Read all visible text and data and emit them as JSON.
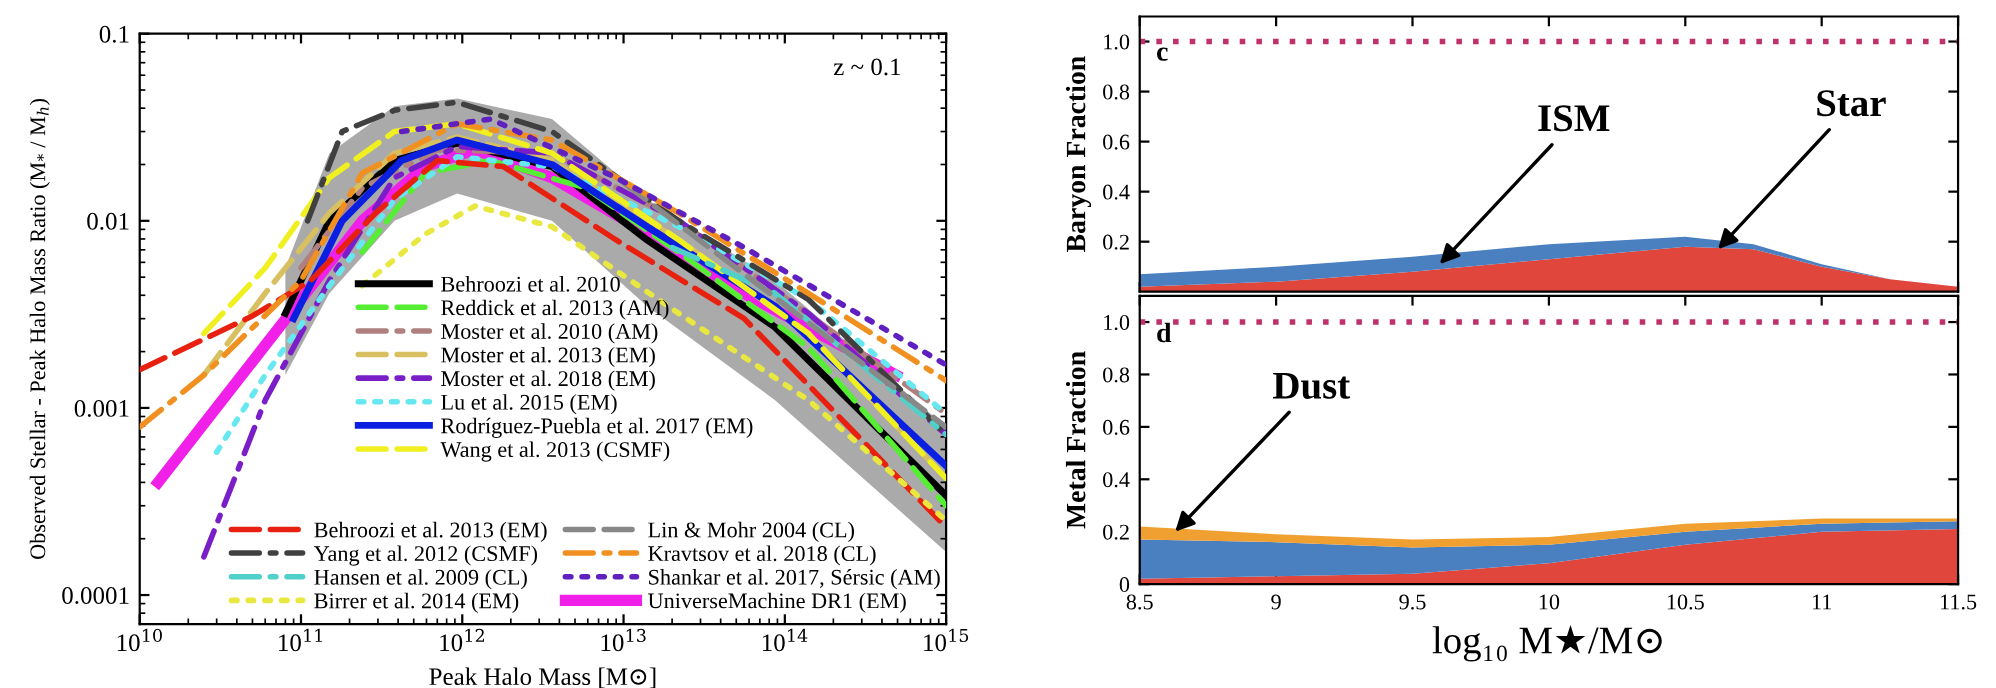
{
  "chart_data": [
    {
      "type": "line",
      "xlabel": "Peak Halo Mass [M⊙]",
      "ylabel": "Observed Stellar - Peak Halo Mass Ratio (M$_{*}$ / M$_{h}$)",
      "annotations": [
        "z ~ 0.1"
      ],
      "log": "xy",
      "legend": "bottom",
      "xlim": [
        10000000000.0,
        1000000000000000.0
      ],
      "ylim": [
        7e-05,
        0.1
      ],
      "xticks": [
        {
          "value": 10000000000.0,
          "label": "10$^{10}$"
        },
        {
          "value": 100000000000.0,
          "label": "10$^{11}$"
        },
        {
          "value": 1000000000000.0,
          "label": "10$^{12}$"
        },
        {
          "value": 10000000000000.0,
          "label": "10$^{13}$"
        },
        {
          "value": 100000000000000.0,
          "label": "10$^{14}$"
        },
        {
          "value": 1000000000000000.0,
          "label": "10$^{15}$"
        }
      ],
      "yticks": [
        0.0001,
        0.001,
        0.01,
        0.1
      ],
      "series": [
        {
          "name": "Behroozi et al. 2010",
          "color": "#000000",
          "line_style": "solid",
          "x": [
            80000000000.0,
            150000000000.0,
            380000000000.0,
            930000000000.0,
            3600000000000.0,
            14000000000000.0,
            87000000000000.0,
            1000000000000000.0
          ],
          "values": [
            0.0032,
            0.01,
            0.021,
            0.026,
            0.0195,
            0.0079,
            0.0027,
            0.00034
          ],
          "lower": [
            0.0015,
            0.0041,
            0.01,
            0.014,
            0.01,
            0.0035,
            0.0011,
            0.00017
          ],
          "upper": [
            0.0056,
            0.023,
            0.041,
            0.045,
            0.035,
            0.013,
            0.0048,
            0.00079
          ]
        },
        {
          "name": "Reddick et al. 2013 (AM)",
          "color": "#55ee33",
          "line_style": "dashed",
          "x": [
            240000000000.0,
            590000000000.0,
            1500000000000.0,
            5800000000000.0,
            22000000000000.0,
            140000000000000.0,
            1000000000000000.0
          ],
          "values": [
            0.0068,
            0.018,
            0.021,
            0.015,
            0.0068,
            0.0021,
            0.0003
          ]
        },
        {
          "name": "Moster et al. 2010 (AM)",
          "color": "#b07f7f",
          "line_style": "dashdot",
          "x": [
            100000000000.0,
            240000000000.0,
            700000000000.0,
            3600000000000.0,
            22000000000000.0,
            1000000000000000.0
          ],
          "values": [
            0.0056,
            0.015,
            0.024,
            0.023,
            0.01,
            0.00093
          ]
        },
        {
          "name": "Moster et al. 2013 (EM)",
          "color": "#d8c060",
          "line_style": "dashed",
          "x": [
            25000000000.0,
            60000000000.0,
            150000000000.0,
            380000000000.0,
            930000000000.0,
            3600000000000.0,
            22000000000000.0,
            140000000000000.0,
            1000000000000000.0
          ],
          "values": [
            0.0015,
            0.0041,
            0.011,
            0.023,
            0.028,
            0.021,
            0.0079,
            0.0025,
            0.00042
          ]
        },
        {
          "name": "Moster et al. 2018 (EM)",
          "color": "#7a1fc8",
          "line_style": "dashdot",
          "x": [
            25000000000.0,
            60000000000.0,
            150000000000.0,
            380000000000.0,
            930000000000.0,
            3600000000000.0,
            22000000000000.0,
            140000000000000.0,
            1000000000000000.0
          ],
          "values": [
            0.00016,
            0.0011,
            0.0048,
            0.017,
            0.025,
            0.023,
            0.01,
            0.0032,
            0.00072
          ]
        },
        {
          "name": "Lu et al. 2015 (EM)",
          "color": "#66e8f0",
          "line_style": "dotted",
          "x": [
            30000000000.0,
            60000000000.0,
            150000000000.0,
            380000000000.0,
            930000000000.0,
            3600000000000.0,
            22000000000000.0,
            140000000000000.0,
            1000000000000000.0
          ],
          "values": [
            0.00058,
            0.0015,
            0.0045,
            0.013,
            0.022,
            0.0195,
            0.0093,
            0.0038,
            0.00093
          ]
        },
        {
          "name": "Rodríguez-Puebla et al. 2017 (EM)",
          "color": "#0a1fe0",
          "line_style": "solid",
          "x": [
            90000000000.0,
            180000000000.0,
            420000000000.0,
            930000000000.0,
            3600000000000.0,
            14000000000000.0,
            87000000000000.0,
            1000000000000000.0
          ],
          "values": [
            0.003,
            0.01,
            0.021,
            0.027,
            0.02,
            0.0093,
            0.0035,
            0.00049
          ]
        },
        {
          "name": "Wang et al. 2013 (CSMF)",
          "color": "#f0f020",
          "line_style": "dashed",
          "x": [
            25000000000.0,
            60000000000.0,
            150000000000.0,
            380000000000.0,
            930000000000.0,
            3600000000000.0,
            22000000000000.0,
            140000000000000.0,
            1000000000000000.0
          ],
          "values": [
            0.0025,
            0.0056,
            0.017,
            0.03,
            0.033,
            0.023,
            0.0079,
            0.0025,
            0.00042
          ]
        },
        {
          "name": "Behroozi et al. 2013 (EM)",
          "color": "#e82010",
          "line_style": "dashed",
          "x": [
            10000000000.0,
            50000000000.0,
            115000000000.0,
            290000000000.0,
            700000000000.0,
            1800000000000.0,
            9000000000000.0,
            56000000000000.0,
            1000000000000000.0
          ],
          "values": [
            0.0016,
            0.0031,
            0.0048,
            0.011,
            0.021,
            0.0195,
            0.0079,
            0.003,
            0.00023
          ]
        },
        {
          "name": "Yang et al. 2012 (CSMF)",
          "color": "#404040",
          "line_style": "dashdot",
          "x": [
            110000000000.0,
            180000000000.0,
            380000000000.0,
            930000000000.0,
            3600000000000.0,
            22000000000000.0,
            140000000000000.0,
            1000000000000000.0
          ],
          "values": [
            0.01,
            0.03,
            0.039,
            0.043,
            0.03,
            0.01,
            0.0038,
            0.00072
          ]
        },
        {
          "name": "Hansen et al. 2009 (CL)",
          "color": "#50d0c8",
          "line_style": "dashdot",
          "x": [
            20000000000000.0,
            87000000000000.0,
            1000000000000000.0
          ],
          "values": [
            0.0072,
            0.0041,
            0.00072
          ]
        },
        {
          "name": "Birrer et al. 2014 (EM)",
          "color": "#e8e840",
          "line_style": "dotted",
          "x": [
            240000000000.0,
            590000000000.0,
            1200000000000.0,
            3600000000000.0,
            22000000000000.0,
            140000000000000.0,
            1000000000000000.0
          ],
          "values": [
            0.0045,
            0.0085,
            0.012,
            0.0093,
            0.0032,
            0.0011,
            0.00025
          ]
        },
        {
          "name": "Lin & Mohr 2004 (CL)",
          "color": "#888888",
          "line_style": "dashed",
          "x": [
            10000000000000.0,
            1000000000000000.0
          ],
          "values": [
            0.016,
            0.00079
          ]
        },
        {
          "name": "Kravtsov et al. 2018 (CL)",
          "color": "#f09020",
          "line_style": "dashdot",
          "x": [
            10000000000.0,
            25000000000.0,
            100000000000.0,
            240000000000.0,
            930000000000.0,
            3600000000000.0,
            22000000000000.0,
            140000000000000.0,
            1000000000000000.0
          ],
          "values": [
            0.00079,
            0.0015,
            0.0048,
            0.018,
            0.033,
            0.027,
            0.011,
            0.0041,
            0.0014
          ]
        },
        {
          "name": "Shankar et al. 2017, Sérsic (AM)",
          "color": "#6020c0",
          "line_style": "dotted",
          "x": [
            420000000000.0,
            1500000000000.0,
            9000000000000.0,
            56000000000000.0,
            1000000000000000.0
          ],
          "values": [
            0.03,
            0.035,
            0.017,
            0.0072,
            0.0017
          ]
        },
        {
          "name": "UniverseMachine DR1 (EM)",
          "color": "#f020e8",
          "line_style": "solid",
          "x": [
            13000000000.0,
            100000000000.0,
            240000000000.0,
            590000000000.0,
            1200000000000.0,
            3600000000000.0,
            12000000000000.0,
            56000000000000.0,
            490000000000000.0
          ],
          "values": [
            0.0004,
            0.0038,
            0.01,
            0.0195,
            0.024,
            0.017,
            0.0093,
            0.0041,
            0.0015
          ]
        }
      ]
    },
    {
      "type": "area",
      "stacked": true,
      "ylabel": "Baryon Fraction",
      "tick_labels": "y",
      "xlim": [
        8.5,
        11.5
      ],
      "ylim": [
        0,
        1.1
      ],
      "xticks": [
        8.5,
        9,
        9.5,
        10,
        10.5,
        11,
        11.5
      ],
      "yticks": [
        0.2,
        0.4,
        0.6,
        0.8,
        {
          "value": 1.0,
          "label": "1.0"
        }
      ],
      "x": [
        8.5,
        9,
        9.5,
        10,
        10.5,
        10.75,
        11,
        11.25,
        11.5
      ],
      "series": [
        {
          "color": "#e0463c",
          "values": [
            0.02,
            0.04,
            0.08,
            0.13,
            0.18,
            0.17,
            0.1,
            0.05,
            0.02
          ]
        },
        {
          "color": "#4a7fc0",
          "values": [
            0.05,
            0.06,
            0.06,
            0.06,
            0.04,
            0.02,
            0.01,
            0.0,
            0.0
          ]
        }
      ],
      "ref_lines": [
        {
          "axis": "y",
          "value": 1.0,
          "color": "#c0306a",
          "line_style": "dotted"
        }
      ],
      "annotations": [
        {
          "text": "ISM",
          "x": 9.6,
          "y": 0.11
        },
        {
          "text": "Star",
          "x": 10.62,
          "y": 0.17
        },
        "c"
      ]
    },
    {
      "type": "area",
      "stacked": true,
      "ylabel": "Metal Fraction",
      "xlabel": "log₁₀ M★/M⊙",
      "xlim": [
        8.5,
        11.5
      ],
      "ylim": [
        0,
        1.1
      ],
      "xticks": [
        8.5,
        9,
        9.5,
        10,
        10.5,
        11,
        11.5
      ],
      "yticks": [
        0,
        0.2,
        0.4,
        0.6,
        0.8,
        {
          "value": 1.0,
          "label": "1.0"
        }
      ],
      "x": [
        8.5,
        9,
        9.5,
        10,
        10.5,
        11,
        11.5
      ],
      "series": [
        {
          "color": "#e0463c",
          "values": [
            0.02,
            0.03,
            0.04,
            0.08,
            0.15,
            0.2,
            0.21
          ]
        },
        {
          "color": "#4a7fc0",
          "values": [
            0.15,
            0.13,
            0.1,
            0.07,
            0.05,
            0.03,
            0.03
          ]
        },
        {
          "color": "#f0a030",
          "values": [
            0.05,
            0.03,
            0.03,
            0.03,
            0.03,
            0.02,
            0.01
          ]
        }
      ],
      "ref_lines": [
        {
          "axis": "y",
          "value": 1.0,
          "color": "#c0306a",
          "line_style": "dotted"
        }
      ],
      "annotations": [
        {
          "text": "Dust",
          "x": 8.63,
          "y": 0.2
        },
        "d"
      ]
    }
  ]
}
